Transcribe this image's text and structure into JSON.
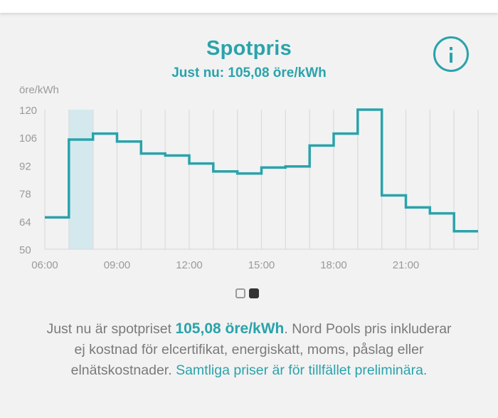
{
  "header": {
    "title": "Spotpris",
    "current_price": "Just nu: 105,08 öre/kWh"
  },
  "info_icon": "info-circle-icon",
  "colors": {
    "accent": "#2aa3ab",
    "highlight": "#d3e9ee",
    "grid": "#dcdcdc",
    "axis_text": "#9a9a9a",
    "body_text": "#7a7a7a"
  },
  "chart_data": {
    "type": "line",
    "step": true,
    "ylabel": "öre/kWh",
    "xlabel": "",
    "y_ticks": [
      "120",
      "106",
      "92",
      "78",
      "64",
      "50"
    ],
    "ylim": [
      50,
      120
    ],
    "x_ticks": [
      "06:00",
      "09:00",
      "12:00",
      "15:00",
      "18:00",
      "21:00"
    ],
    "x_hours": [
      6,
      7,
      8,
      9,
      10,
      11,
      12,
      13,
      14,
      15,
      16,
      17,
      18,
      19,
      20,
      21,
      22,
      23
    ],
    "values": [
      66,
      105,
      108,
      104,
      98,
      97,
      93,
      89,
      88,
      91,
      91.5,
      102,
      108,
      120,
      77,
      71,
      68,
      59
    ],
    "highlight_hour": 7,
    "grid": true
  },
  "pager": {
    "pages": 2,
    "active": 1
  },
  "description": {
    "part1": "Just nu är spotpriset ",
    "price": "105,08 öre/kWh",
    "part2": ". Nord Pools pris inkluderar ej kostnad för elcertifikat, energiskatt, moms, påslag eller elnätskostnader. ",
    "link": "Samtliga priser är för tillfället preliminära."
  }
}
